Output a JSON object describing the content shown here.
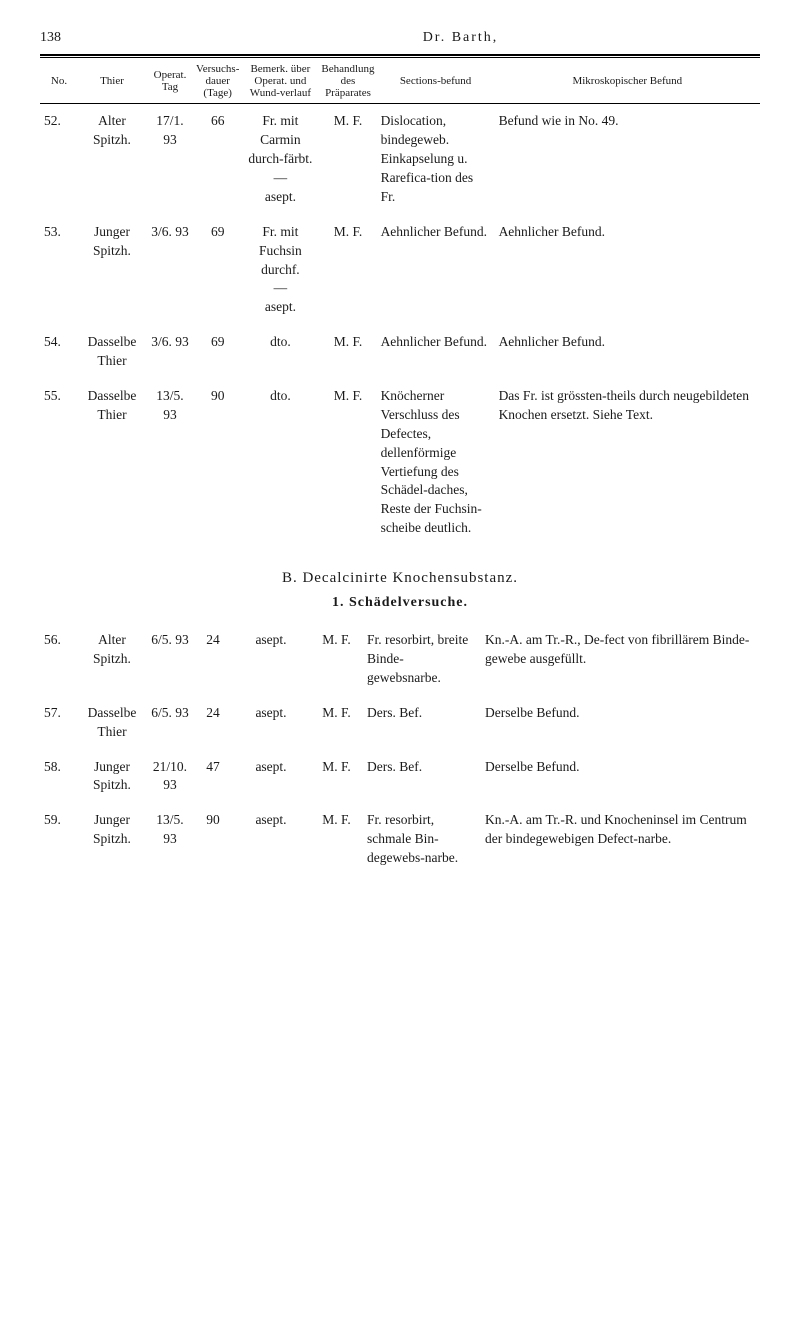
{
  "page_number": "138",
  "author": "Dr. Barth,",
  "table_headers": {
    "no": "No.",
    "thier": "Thier",
    "operat": "Operat. Tag",
    "versuch": "Versuchs-dauer (Tage)",
    "bemerk": "Bemerk. über Operat. und Wund-verlauf",
    "behand": "Behandlung des Präparates",
    "sections": "Sections-befund",
    "mikro": "Mikroskopischer Befund"
  },
  "rows_a": [
    {
      "no": "52.",
      "thier": "Alter Spitzh.",
      "operat": "17/1. 93",
      "versuch": "66",
      "bemerk": "Fr. mit Carmin durch-färbt.\n—\nasept.",
      "behand": "M. F.",
      "sections": "Dislocation, bindegeweb. Einkapselung u. Rarefica-tion des Fr.",
      "mikro": "Befund wie in No. 49."
    },
    {
      "no": "53.",
      "thier": "Junger Spitzh.",
      "operat": "3/6. 93",
      "versuch": "69",
      "bemerk": "Fr. mit Fuchsin durchf.\n—\nasept.",
      "behand": "M. F.",
      "sections": "Aehnlicher Befund.",
      "mikro": "Aehnlicher Befund."
    },
    {
      "no": "54.",
      "thier": "Dasselbe Thier",
      "operat": "3/6. 93",
      "versuch": "69",
      "bemerk": "dto.",
      "behand": "M. F.",
      "sections": "Aehnlicher Befund.",
      "mikro": "Aehnlicher Befund."
    },
    {
      "no": "55.",
      "thier": "Dasselbe Thier",
      "operat": "13/5. 93",
      "versuch": "90",
      "bemerk": "dto.",
      "behand": "M. F.",
      "sections": "Knöcherner Verschluss des Defectes, dellenförmige Vertiefung des Schädel-daches, Reste der Fuchsin-scheibe deutlich.",
      "mikro": "Das Fr. ist grössten-theils durch neugebildeten Knochen ersetzt. Siehe Text."
    }
  ],
  "section_b_heading": "B. Decalcinirte Knochensubstanz.",
  "sub_heading": "1. Schädelversuche.",
  "rows_b": [
    {
      "no": "56.",
      "thier": "Alter Spitzh.",
      "operat": "6/5. 93",
      "versuch": "24",
      "bemerk": "asept.",
      "behand": "M. F.",
      "sections": "Fr. resorbirt, breite Binde-gewebsnarbe.",
      "mikro": "Kn.-A. am Tr.-R., De-fect von fibrillärem Binde-gewebe ausgefüllt."
    },
    {
      "no": "57.",
      "thier": "Dasselbe Thier",
      "operat": "6/5. 93",
      "versuch": "24",
      "bemerk": "asept.",
      "behand": "M. F.",
      "sections": "Ders. Bef.",
      "mikro": "Derselbe Befund."
    },
    {
      "no": "58.",
      "thier": "Junger Spitzh.",
      "operat": "21/10. 93",
      "versuch": "47",
      "bemerk": "asept.",
      "behand": "M. F.",
      "sections": "Ders. Bef.",
      "mikro": "Derselbe Befund."
    },
    {
      "no": "59.",
      "thier": "Junger Spitzh.",
      "operat": "13/5. 93",
      "versuch": "90",
      "bemerk": "asept.",
      "behand": "M. F.",
      "sections": "Fr. resorbirt, schmale Bin-degewebs-narbe.",
      "mikro": "Kn.-A. am Tr.-R. und Knocheninsel im Centrum der bindegewebigen Defect-narbe."
    }
  ]
}
